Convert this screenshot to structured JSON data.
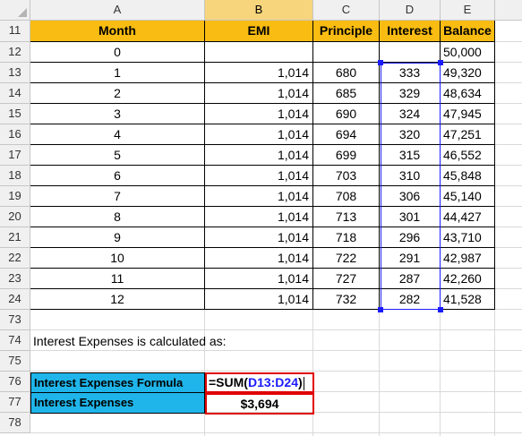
{
  "columns": [
    "A",
    "B",
    "C",
    "D",
    "E"
  ],
  "active_column": "B",
  "table_headers": [
    "Month",
    "EMI",
    "Principle",
    "Interest",
    "Balance"
  ],
  "rows": [
    {
      "row": "12",
      "month": "0",
      "emi": "",
      "principle": "",
      "interest": "",
      "balance": "50,000"
    },
    {
      "row": "13",
      "month": "1",
      "emi": "1,014",
      "principle": "680",
      "interest": "333",
      "balance": "49,320"
    },
    {
      "row": "14",
      "month": "2",
      "emi": "1,014",
      "principle": "685",
      "interest": "329",
      "balance": "48,634"
    },
    {
      "row": "15",
      "month": "3",
      "emi": "1,014",
      "principle": "690",
      "interest": "324",
      "balance": "47,945"
    },
    {
      "row": "16",
      "month": "4",
      "emi": "1,014",
      "principle": "694",
      "interest": "320",
      "balance": "47,251"
    },
    {
      "row": "17",
      "month": "5",
      "emi": "1,014",
      "principle": "699",
      "interest": "315",
      "balance": "46,552"
    },
    {
      "row": "18",
      "month": "6",
      "emi": "1,014",
      "principle": "703",
      "interest": "310",
      "balance": "45,848"
    },
    {
      "row": "19",
      "month": "7",
      "emi": "1,014",
      "principle": "708",
      "interest": "306",
      "balance": "45,140"
    },
    {
      "row": "20",
      "month": "8",
      "emi": "1,014",
      "principle": "713",
      "interest": "301",
      "balance": "44,427"
    },
    {
      "row": "21",
      "month": "9",
      "emi": "1,014",
      "principle": "718",
      "interest": "296",
      "balance": "43,710"
    },
    {
      "row": "22",
      "month": "10",
      "emi": "1,014",
      "principle": "722",
      "interest": "291",
      "balance": "42,987"
    },
    {
      "row": "23",
      "month": "11",
      "emi": "1,014",
      "principle": "727",
      "interest": "287",
      "balance": "42,260"
    },
    {
      "row": "24",
      "month": "12",
      "emi": "1,014",
      "principle": "732",
      "interest": "282",
      "balance": "41,528"
    }
  ],
  "row_numbers": {
    "header": "11",
    "gap1": "73",
    "note": "74",
    "gap2": "75",
    "formula": "76",
    "result": "77",
    "last": "78"
  },
  "note_text": "Interest Expenses is calculated as:",
  "formula_label": "Interest Expenses Formula",
  "formula": {
    "prefix": "=SUM(",
    "range": "D13:D24",
    "suffix": ")"
  },
  "result_label": "Interest Expenses",
  "result_value": "$3,694",
  "colors": {
    "header_fill": "#f8bc12",
    "label_fill": "#1fb5ea",
    "highlight_border": "#e00000",
    "range_ref": "#1a1aff"
  }
}
